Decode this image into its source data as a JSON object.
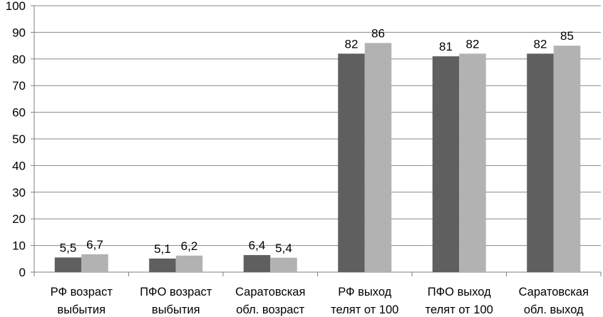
{
  "colors": {
    "series_1": "#5f5f5f",
    "series_2": "#b2b2b2",
    "axis": "#7f7f7f",
    "grid": "#888888"
  },
  "chart_data": {
    "type": "bar",
    "categories": [
      [
        "РФ возраст",
        "выбытия"
      ],
      [
        "ПФО возраст",
        "выбытия"
      ],
      [
        "Саратовская",
        "обл. возраст"
      ],
      [
        "РФ выход",
        "телят от 100"
      ],
      [
        "ПФО выход",
        "телят от 100"
      ],
      [
        "Саратовская",
        "обл. выход"
      ]
    ],
    "series": [
      {
        "values": [
          5.5,
          5.1,
          6.4,
          82,
          81,
          82
        ],
        "labels": [
          "5,5",
          "5,1",
          "6,4",
          "82",
          "81",
          "82"
        ]
      },
      {
        "values": [
          6.7,
          6.2,
          5.4,
          86,
          82,
          85
        ],
        "labels": [
          "6,7",
          "6,2",
          "5,4",
          "86",
          "82",
          "85"
        ]
      }
    ],
    "ylim": [
      0,
      100
    ],
    "yticks": [
      0,
      10,
      20,
      30,
      40,
      50,
      60,
      70,
      80,
      90,
      100
    ],
    "grid": true,
    "legend": "none",
    "title": "",
    "xlabel": "",
    "ylabel": ""
  }
}
